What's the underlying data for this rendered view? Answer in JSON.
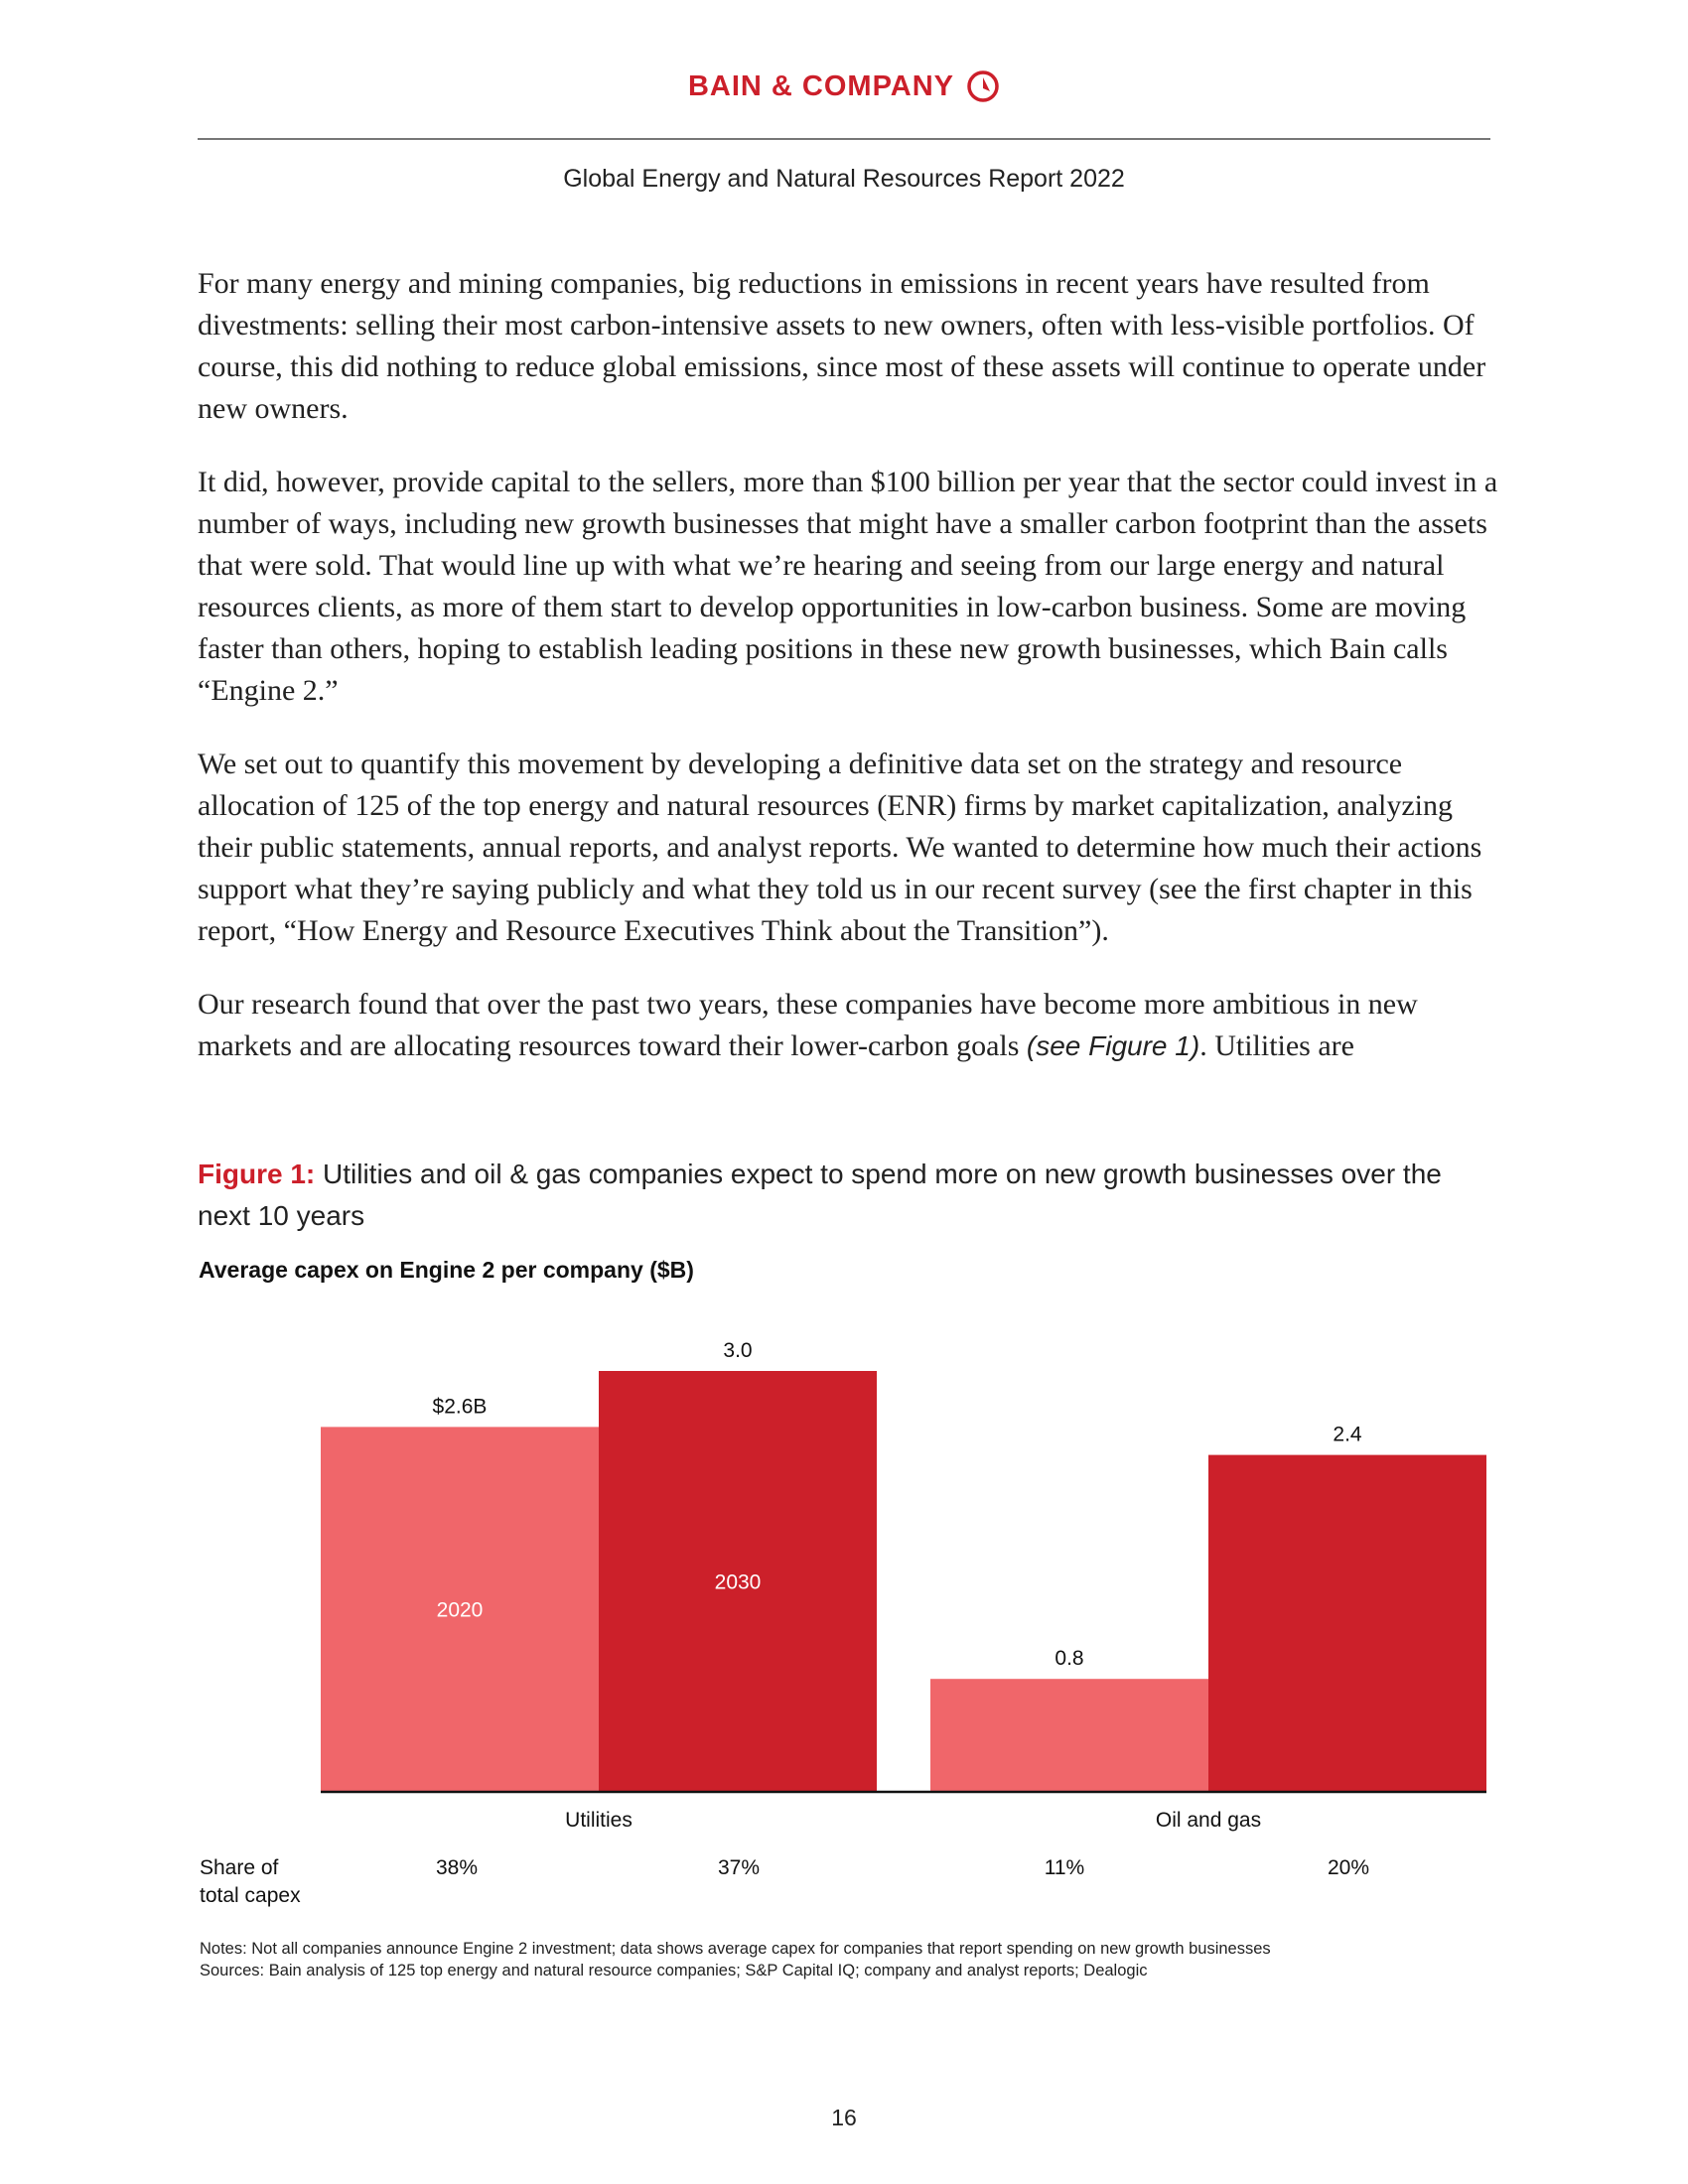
{
  "header": {
    "logo_text": "BAIN & COMPANY",
    "report_title": "Global Energy and Natural Resources Report 2022"
  },
  "body": {
    "paragraphs": [
      "For many energy and mining companies, big reductions in emissions in recent years have resulted from divestments: selling their most carbon-intensive assets to new owners, often with less-visible portfolios. Of course, this did nothing to reduce global emissions, since most of these assets will continue to operate under new owners.",
      "It did, however, provide capital to the sellers, more than $100 billion per year that the sector could invest in a number of ways, including new growth businesses that might have a smaller carbon footprint than the assets that were sold. That would line up with what we’re hearing and seeing from our large energy and natural resources clients, as more of them start to develop opportunities in low-carbon business. Some are moving faster than others, hoping to establish leading positions in these new growth businesses, which Bain calls “Engine 2.”",
      "We set out to quantify this movement by developing a definitive data set on the strategy and resource allocation of 125 of the top energy and natural resources (ENR) firms by market capitalization, analyzing their public statements, annual reports, and analyst reports. We wanted to determine how much their actions support what they’re saying publicly and what they told us in our recent survey (see the first chapter in this report, “How Energy and Resource Executives Think about the Transition”)."
    ],
    "last_paragraph_start": "Our research found that over the past two years, these companies have become more ambitious in new markets and are allocating resources toward their lower-carbon goals ",
    "last_paragraph_ref": "(see Figure 1)",
    "last_paragraph_end": ". Utilities are"
  },
  "figure": {
    "label": "Figure 1:",
    "title": "Utilities and oil & gas companies expect to spend more on new growth businesses over the next 10 years",
    "notes": "Notes: Not all companies announce Engine 2 investment; data shows average capex for companies that report spending on new growth businesses",
    "sources": "Sources: Bain analysis of 125 top energy and natural resource companies; S&P Capital IQ; company and analyst reports; Dealogic"
  },
  "chart_data": {
    "type": "bar",
    "title": "Average capex on Engine 2 per company ($B)",
    "categories": [
      "Utilities",
      "Oil and gas"
    ],
    "series": [
      {
        "name": "2020",
        "values": [
          2.6,
          0.8
        ],
        "labels": [
          "$2.6B",
          "0.8"
        ],
        "color": "#f0666a"
      },
      {
        "name": "2030",
        "values": [
          3.0,
          2.4
        ],
        "labels": [
          "3.0",
          "2.4"
        ],
        "color": "#cc202a"
      }
    ],
    "row_label": "Share of total capex",
    "row_label_lines": [
      "Share of",
      "total capex"
    ],
    "share_of_total_capex": [
      "38%",
      "37%",
      "11%",
      "20%"
    ],
    "ylim": [
      0,
      3.0
    ],
    "grid": false
  },
  "page_number": "16"
}
